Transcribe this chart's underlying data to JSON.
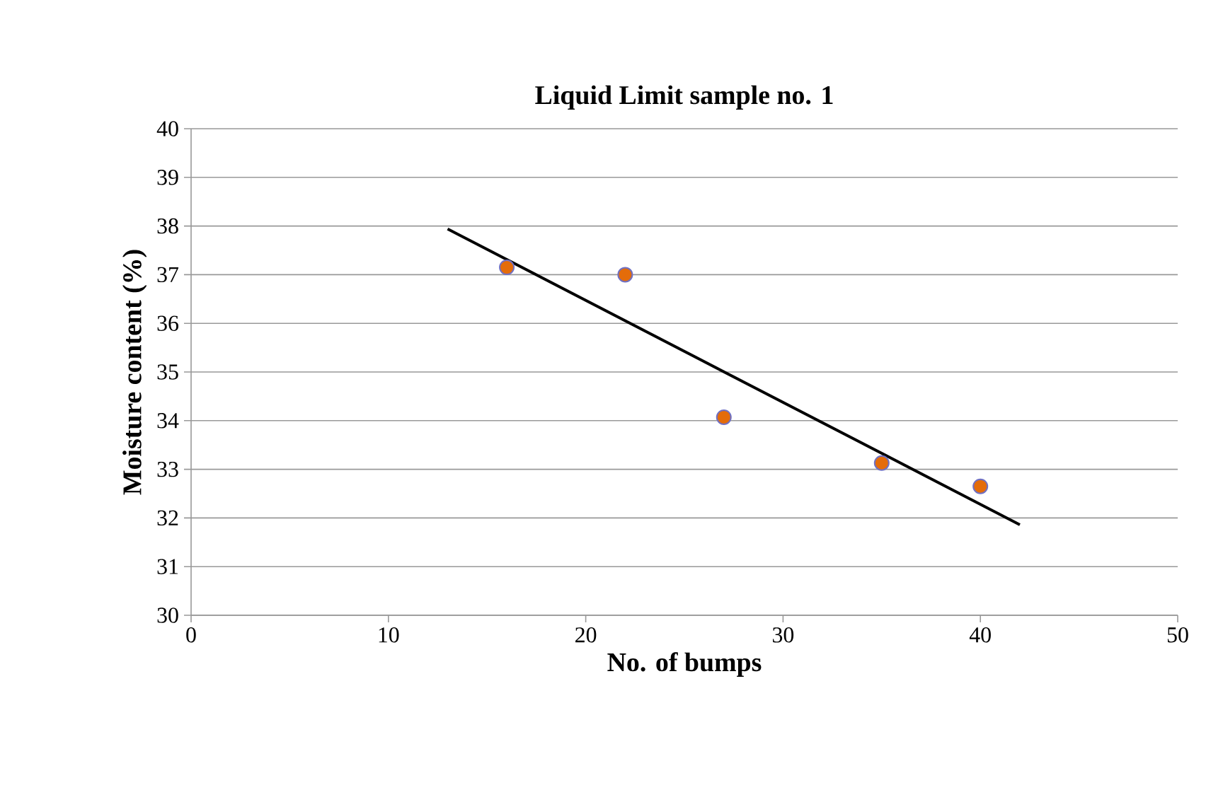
{
  "chart_data": {
    "type": "scatter",
    "title": "Liquid Limit sample no. 1",
    "xlabel": "No. of bumps",
    "ylabel": "Moisture content (%)",
    "xlim": [
      0,
      50
    ],
    "xticks": [
      0,
      10,
      20,
      30,
      40,
      50
    ],
    "ylim": [
      30,
      40
    ],
    "yticks": [
      30,
      31,
      32,
      33,
      34,
      35,
      36,
      37,
      38,
      39,
      40
    ],
    "grid": "y",
    "series": [
      {
        "color": "#e46c0a",
        "marker": "circle",
        "x": [
          16,
          22,
          27,
          35,
          40
        ],
        "values": [
          37.15,
          37.0,
          34.07,
          33.13,
          32.65
        ]
      },
      {
        "type": "line",
        "color": "#000000",
        "marker": "none",
        "line_style": "solid",
        "x": [
          13,
          42
        ],
        "values": [
          37.94,
          31.86
        ]
      }
    ]
  }
}
